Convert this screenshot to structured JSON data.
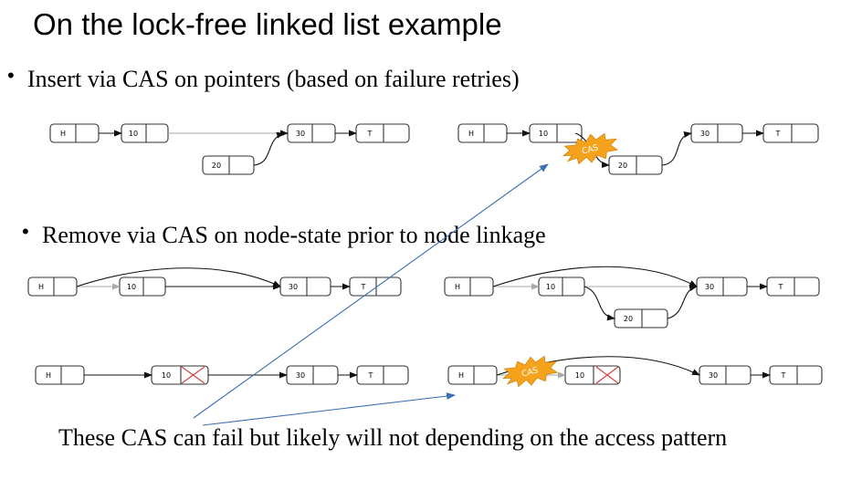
{
  "title": "On the lock-free linked list example",
  "bullets": [
    "Insert via CAS on pointers (based on failure retries)",
    "Remove via CAS on node-state prior to node linkage"
  ],
  "bullet_marker": "•",
  "footer_note": "These CAS can fail but likely will not depending on the access pattern",
  "node_labels": {
    "head": "H",
    "tail": "T",
    "n10": "10",
    "n20": "20",
    "n30": "30"
  },
  "cas_label": "CAS",
  "colors": {
    "cas_burst": "#f5a21c",
    "annotation_arrow": "#3d6fb4",
    "deleted_mark": "#d24545",
    "old_link": "#aaaaaa"
  }
}
